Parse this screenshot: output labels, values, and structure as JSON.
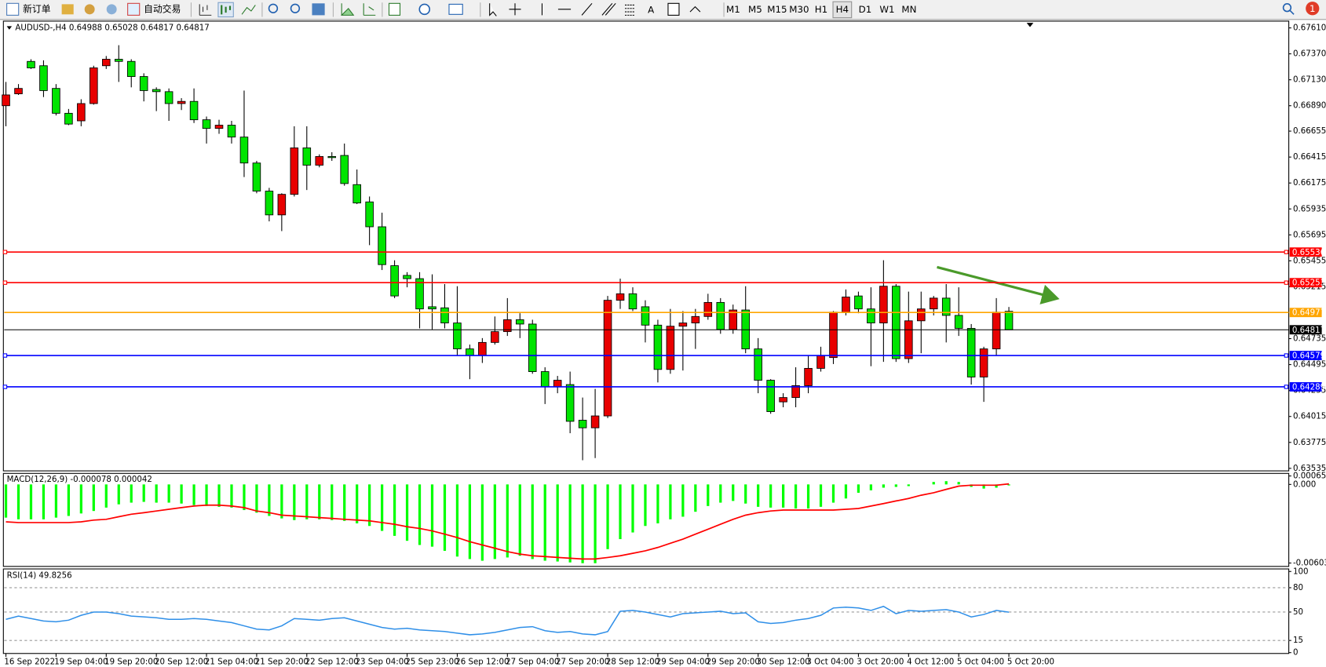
{
  "toolbar": {
    "new_order": "新订单",
    "auto_trading": "自动交易",
    "timeframes": [
      "M1",
      "M5",
      "M15",
      "M30",
      "H1",
      "H4",
      "D1",
      "W1",
      "MN"
    ],
    "notification_count": 1
  },
  "chart_data": [
    {
      "type": "candlestick",
      "title": "AUDUSD-,H4",
      "up_color": "#e80000",
      "down_color": "#00e400",
      "grid": false,
      "categories": [
        "16 Sep 2022",
        null,
        null,
        null,
        "19 Sep 04:00",
        null,
        null,
        null,
        "19 Sep 20:00",
        null,
        null,
        null,
        "20 Sep 12:00",
        null,
        null,
        null,
        "21 Sep 04:00",
        null,
        null,
        null,
        "21 Sep 20:00",
        null,
        null,
        null,
        "22 Sep 12:00",
        null,
        null,
        null,
        "23 Sep 04:00",
        null,
        null,
        null,
        "25 Sep 23:00",
        null,
        null,
        null,
        "26 Sep 12:00",
        null,
        null,
        null,
        "27 Sep 04:00",
        null,
        null,
        null,
        "27 Sep 20:00",
        null,
        null,
        null,
        "28 Sep 12:00",
        null,
        null,
        null,
        "29 Sep 04:00",
        null,
        null,
        null,
        "29 Sep 20:00",
        null,
        null,
        null,
        "30 Sep 12:00",
        null,
        null,
        null,
        "3 Oct 04:00",
        null,
        null,
        null,
        "3 Oct 20:00",
        null,
        null,
        null,
        "4 Oct 12:00",
        null,
        null,
        null,
        "5 Oct 04:00",
        null,
        null,
        null,
        "5 Oct 20:00"
      ],
      "open": [
        0.6689,
        0.67,
        0.673,
        0.6726,
        0.6705,
        0.6682,
        0.6675,
        0.6691,
        0.6726,
        0.6732,
        0.673,
        0.6716,
        0.6704,
        0.6702,
        0.6691,
        0.6693,
        0.6676,
        0.6668,
        0.6671,
        0.666,
        0.6636,
        0.661,
        0.6588,
        0.6607,
        0.665,
        0.6634,
        0.6642,
        0.6643,
        0.6616,
        0.66,
        0.6577,
        0.6541,
        0.6532,
        0.6529,
        0.6503,
        0.6502,
        0.6488,
        0.6464,
        0.6458,
        0.647,
        0.648,
        0.6491,
        0.6487,
        0.6443,
        0.6429,
        0.6431,
        0.6398,
        0.6391,
        0.6402,
        0.6509,
        0.6515,
        0.6503,
        0.6486,
        0.6445,
        0.6485,
        0.6488,
        0.6494,
        0.6507,
        0.6482,
        0.65,
        0.6464,
        0.6435,
        0.6415,
        0.6419,
        0.643,
        0.6446,
        0.6456,
        0.6498,
        0.6513,
        0.6501,
        0.6488,
        0.6522,
        0.6455,
        0.649,
        0.6501,
        0.6511,
        0.6495,
        0.6483,
        0.6438,
        0.6464,
        0.64988
      ],
      "high": [
        0.6711,
        0.6709,
        0.6732,
        0.6731,
        0.6709,
        0.6686,
        0.6695,
        0.6726,
        0.6735,
        0.6745,
        0.6732,
        0.6719,
        0.6706,
        0.6705,
        0.6696,
        0.6705,
        0.6679,
        0.6676,
        0.6675,
        0.6703,
        0.6638,
        0.6613,
        0.6608,
        0.667,
        0.667,
        0.6644,
        0.6646,
        0.6654,
        0.663,
        0.6605,
        0.659,
        0.6546,
        0.6535,
        0.6535,
        0.6533,
        0.6524,
        0.6522,
        0.6468,
        0.6474,
        0.6494,
        0.6511,
        0.6497,
        0.6491,
        0.6447,
        0.6439,
        0.6443,
        0.6419,
        0.6427,
        0.6513,
        0.6529,
        0.6521,
        0.6509,
        0.6491,
        0.6501,
        0.6499,
        0.6501,
        0.6515,
        0.6511,
        0.6505,
        0.6522,
        0.6474,
        0.6436,
        0.6423,
        0.6447,
        0.6458,
        0.6466,
        0.6499,
        0.6519,
        0.6517,
        0.6521,
        0.6546,
        0.6524,
        0.6517,
        0.6517,
        0.6513,
        0.6524,
        0.6521,
        0.6487,
        0.6466,
        0.6511,
        0.65028
      ],
      "low": [
        0.667,
        0.6699,
        0.6723,
        0.6697,
        0.668,
        0.6671,
        0.667,
        0.669,
        0.6723,
        0.6711,
        0.6706,
        0.6693,
        0.6684,
        0.6675,
        0.6685,
        0.6673,
        0.6654,
        0.6663,
        0.6654,
        0.6623,
        0.6608,
        0.6582,
        0.6573,
        0.6605,
        0.6611,
        0.6632,
        0.6638,
        0.6615,
        0.6598,
        0.656,
        0.6537,
        0.6511,
        0.6521,
        0.6483,
        0.6482,
        0.6483,
        0.6458,
        0.6436,
        0.6451,
        0.6468,
        0.6476,
        0.6474,
        0.6441,
        0.6413,
        0.6423,
        0.6386,
        0.6361,
        0.6363,
        0.64,
        0.6501,
        0.6499,
        0.647,
        0.6433,
        0.6441,
        0.6444,
        0.6464,
        0.6491,
        0.6478,
        0.6478,
        0.646,
        0.6423,
        0.6404,
        0.641,
        0.641,
        0.6423,
        0.6443,
        0.645,
        0.6495,
        0.6497,
        0.6448,
        0.6452,
        0.6452,
        0.6451,
        0.646,
        0.6495,
        0.647,
        0.6476,
        0.6431,
        0.6415,
        0.6458,
        0.64817
      ],
      "close": [
        0.6699,
        0.6705,
        0.6724,
        0.6703,
        0.6682,
        0.6672,
        0.6691,
        0.6724,
        0.6732,
        0.673,
        0.6716,
        0.6703,
        0.6702,
        0.6691,
        0.6693,
        0.6676,
        0.6668,
        0.6671,
        0.666,
        0.6636,
        0.661,
        0.6588,
        0.6607,
        0.665,
        0.6634,
        0.6642,
        0.6641,
        0.6617,
        0.6599,
        0.6577,
        0.6542,
        0.6513,
        0.6529,
        0.6501,
        0.6501,
        0.6488,
        0.6464,
        0.6458,
        0.647,
        0.648,
        0.6491,
        0.6487,
        0.6443,
        0.6429,
        0.6435,
        0.6397,
        0.6391,
        0.6402,
        0.6509,
        0.6515,
        0.6501,
        0.6486,
        0.6445,
        0.6485,
        0.6488,
        0.6494,
        0.6507,
        0.6482,
        0.65,
        0.6464,
        0.6435,
        0.6406,
        0.6419,
        0.643,
        0.6446,
        0.6458,
        0.6498,
        0.6512,
        0.6501,
        0.6488,
        0.6522,
        0.6455,
        0.649,
        0.6501,
        0.6511,
        0.6495,
        0.6483,
        0.6438,
        0.6464,
        0.6498,
        0.64817
      ],
      "ylim": [
        0.63535,
        0.6761
      ],
      "yticks": [
        {
          "value": 0.6761,
          "label": "0.67610"
        },
        {
          "value": 0.6737,
          "label": "0.67370"
        },
        {
          "value": 0.6713,
          "label": "0.67130"
        },
        {
          "value": 0.6689,
          "label": "0.66890"
        },
        0.66655,
        0.66415,
        0.66175,
        0.65935,
        0.65695,
        0.65455,
        0.65215,
        0.64735,
        0.64495,
        0.64255,
        0.64015,
        0.63775,
        0.63535
      ],
      "hlines": [
        {
          "value": 0.65536,
          "color": "#ff0000"
        },
        {
          "value": 0.65253,
          "color": "#ff0000"
        },
        {
          "value": 0.64977,
          "color": "#ffa500"
        },
        {
          "value": 0.64817,
          "color": "#000000"
        },
        {
          "value": 0.64579,
          "color": "#0000ff"
        },
        {
          "value": 0.64289,
          "color": "#0000ff"
        }
      ]
    },
    {
      "type": "macd",
      "title": "MACD(12,26,9)",
      "histogram_color": "#00ff00",
      "signal_color": "#ff0000",
      "histogram": [
        -0.00255,
        -0.00268,
        -0.00268,
        -0.00268,
        -0.00255,
        -0.00242,
        -0.00223,
        -0.00204,
        -0.00178,
        -0.00153,
        -0.0014,
        -0.00134,
        -0.0014,
        -0.0014,
        -0.00147,
        -0.00159,
        -0.00166,
        -0.00172,
        -0.00178,
        -0.00197,
        -0.00217,
        -0.00242,
        -0.00261,
        -0.00274,
        -0.00268,
        -0.00268,
        -0.00274,
        -0.0028,
        -0.00299,
        -0.00319,
        -0.00357,
        -0.00395,
        -0.00433,
        -0.00465,
        -0.00478,
        -0.0051,
        -0.00554,
        -0.00573,
        -0.00586,
        -0.00573,
        -0.00561,
        -0.00548,
        -0.00573,
        -0.00586,
        -0.00592,
        -0.00599,
        -0.00605,
        -0.00605,
        -0.00497,
        -0.0042,
        -0.00369,
        -0.00319,
        -0.00299,
        -0.00268,
        -0.00248,
        -0.0021,
        -0.00166,
        -0.0014,
        -0.00127,
        -0.00147,
        -0.00172,
        -0.00178,
        -0.00178,
        -0.00185,
        -0.00185,
        -0.00172,
        -0.0014,
        -0.00108,
        -0.00064,
        -0.00045,
        -0.00025,
        -0.00019,
        -0.00013,
        0,
        0.00019,
        0.00025,
        0.00019,
        -0.00019,
        -0.00032,
        -0.00025,
        -7.8e-05
      ],
      "signal": [
        -0.00287,
        -0.00293,
        -0.00293,
        -0.00293,
        -0.00293,
        -0.00293,
        -0.00287,
        -0.00274,
        -0.00268,
        -0.00248,
        -0.00229,
        -0.00217,
        -0.00204,
        -0.00191,
        -0.00178,
        -0.00166,
        -0.00159,
        -0.00159,
        -0.00166,
        -0.00178,
        -0.00204,
        -0.00217,
        -0.00236,
        -0.00242,
        -0.00248,
        -0.00255,
        -0.00261,
        -0.00268,
        -0.00274,
        -0.0028,
        -0.00293,
        -0.00306,
        -0.00325,
        -0.00338,
        -0.00357,
        -0.00382,
        -0.00408,
        -0.0044,
        -0.00465,
        -0.0049,
        -0.00516,
        -0.00535,
        -0.00548,
        -0.00554,
        -0.00561,
        -0.00567,
        -0.00573,
        -0.00573,
        -0.00561,
        -0.00548,
        -0.00529,
        -0.0051,
        -0.00484,
        -0.00452,
        -0.0042,
        -0.00382,
        -0.00344,
        -0.00306,
        -0.00268,
        -0.00236,
        -0.00217,
        -0.00204,
        -0.00197,
        -0.00197,
        -0.00197,
        -0.00197,
        -0.00197,
        -0.00191,
        -0.00185,
        -0.00166,
        -0.00147,
        -0.00127,
        -0.00108,
        -0.00083,
        -0.00064,
        -0.00038,
        -0.00013,
        -6e-05,
        -6e-05,
        -6e-05,
        4.2e-05
      ],
      "ylim": [
        -0.006036,
        0.000651
      ],
      "yticks": [
        0.000651,
        {
          "value": 0,
          "label": "0.000"
        },
        -0.006036
      ]
    },
    {
      "type": "line",
      "title": "RSI(14)",
      "color": "#2f8fe8",
      "grid": true,
      "values": [
        41,
        45,
        42,
        39,
        38,
        40,
        46,
        50,
        50,
        48,
        45,
        44,
        43,
        41,
        41,
        42,
        41,
        39,
        37,
        33,
        29,
        28,
        33,
        42,
        41,
        40,
        42,
        43,
        39,
        35,
        31,
        29,
        30,
        28,
        27,
        26,
        24,
        22,
        23,
        25,
        28,
        31,
        32,
        27,
        25,
        26,
        23,
        22,
        26,
        51,
        52,
        50,
        47,
        44,
        48,
        49,
        50,
        51,
        48,
        49,
        38,
        36,
        37,
        40,
        42,
        46,
        55,
        56,
        55,
        52,
        57,
        48,
        52,
        51,
        52,
        53,
        50,
        44,
        47,
        52,
        49.8256
      ],
      "ylim": [
        0,
        100
      ],
      "yticks": [
        100,
        80,
        50,
        15,
        0
      ]
    }
  ]
}
